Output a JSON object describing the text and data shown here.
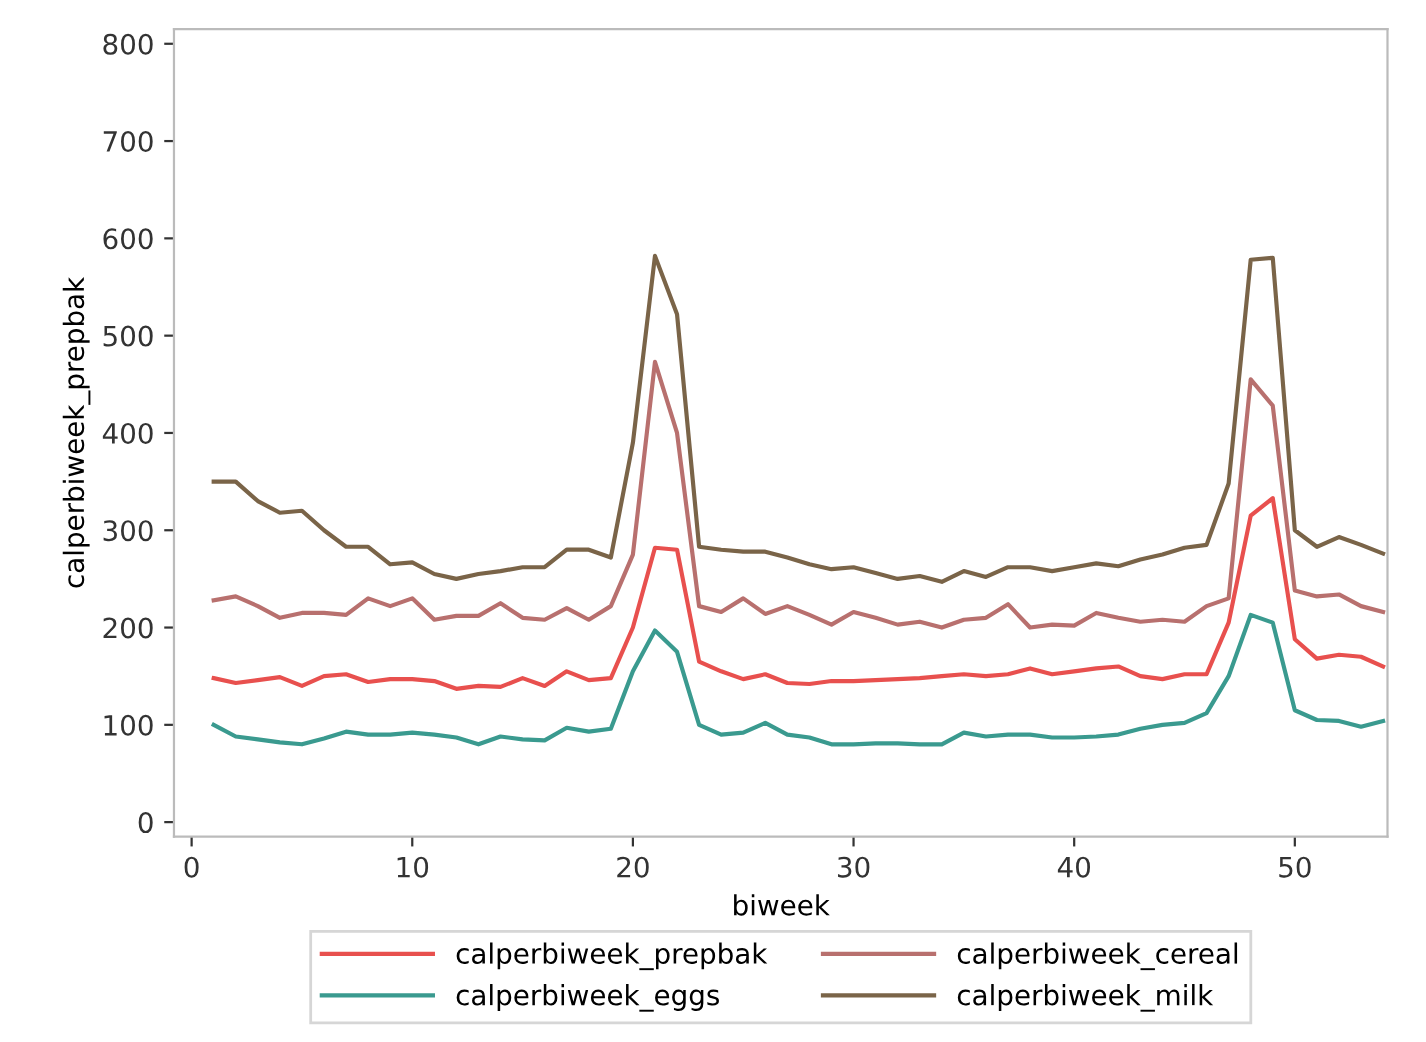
{
  "chart_data": {
    "type": "line",
    "xlabel": "biweek",
    "ylabel": "calperbiweek_prepbak",
    "x": [
      1,
      2,
      3,
      4,
      5,
      6,
      7,
      8,
      9,
      10,
      11,
      12,
      13,
      14,
      15,
      16,
      17,
      18,
      19,
      20,
      21,
      22,
      23,
      24,
      25,
      26,
      27,
      28,
      29,
      30,
      31,
      32,
      33,
      34,
      35,
      36,
      37,
      38,
      39,
      40,
      41,
      42,
      43,
      44,
      45,
      46,
      47,
      48,
      49,
      50,
      51,
      52,
      53,
      54
    ],
    "xlim": [
      -0.8,
      54.2
    ],
    "xticks": [
      0,
      10,
      20,
      30,
      40,
      50
    ],
    "ylim": [
      -15,
      815
    ],
    "yticks": [
      0,
      100,
      200,
      300,
      400,
      500,
      600,
      700,
      800
    ],
    "grid": false,
    "legend": "bottom",
    "marker": "none",
    "line_style": "solid",
    "series": [
      {
        "name": "calperbiweek_prepbak",
        "color": "#e8504e",
        "values": [
          148,
          143,
          146,
          149,
          140,
          150,
          152,
          144,
          147,
          147,
          145,
          137,
          140,
          139,
          148,
          140,
          155,
          146,
          148,
          200,
          282,
          280,
          165,
          155,
          147,
          152,
          143,
          142,
          145,
          145,
          146,
          147,
          148,
          150,
          152,
          150,
          152,
          158,
          152,
          155,
          158,
          160,
          150,
          147,
          152,
          152,
          205,
          315,
          333,
          188,
          168,
          172,
          170,
          160
        ]
      },
      {
        "name": "calperbiweek_eggs",
        "color": "#3a9a8f",
        "values": [
          100,
          88,
          85,
          82,
          80,
          86,
          93,
          90,
          90,
          92,
          90,
          87,
          80,
          88,
          85,
          84,
          97,
          93,
          96,
          155,
          197,
          175,
          100,
          90,
          92,
          102,
          90,
          87,
          80,
          80,
          81,
          81,
          80,
          80,
          92,
          88,
          90,
          90,
          87,
          87,
          88,
          90,
          96,
          100,
          102,
          112,
          150,
          213,
          205,
          115,
          105,
          104,
          98,
          104
        ]
      },
      {
        "name": "calperbiweek_cereal",
        "color": "#b8706e",
        "values": [
          228,
          232,
          222,
          210,
          215,
          215,
          213,
          230,
          222,
          230,
          208,
          212,
          212,
          225,
          210,
          208,
          220,
          208,
          222,
          275,
          473,
          400,
          222,
          216,
          230,
          214,
          222,
          213,
          203,
          216,
          210,
          203,
          206,
          200,
          208,
          210,
          224,
          200,
          203,
          202,
          215,
          210,
          206,
          208,
          206,
          222,
          230,
          455,
          428,
          238,
          232,
          234,
          222,
          216
        ]
      },
      {
        "name": "calperbiweek_milk",
        "color": "#7a6448",
        "values": [
          350,
          350,
          330,
          318,
          320,
          300,
          283,
          283,
          265,
          267,
          255,
          250,
          255,
          258,
          262,
          262,
          280,
          280,
          272,
          390,
          582,
          522,
          283,
          280,
          278,
          278,
          272,
          265,
          260,
          262,
          256,
          250,
          253,
          247,
          258,
          252,
          262,
          262,
          258,
          262,
          266,
          263,
          270,
          275,
          282,
          285,
          348,
          578,
          580,
          300,
          283,
          293,
          285,
          276
        ]
      }
    ]
  }
}
